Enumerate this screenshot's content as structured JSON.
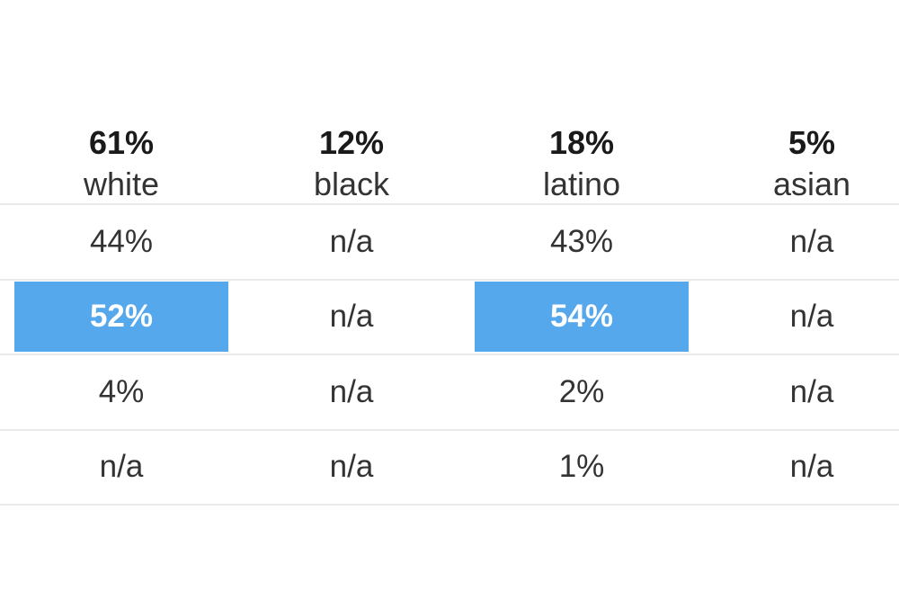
{
  "colors": {
    "background": "#ffffff",
    "highlight": "#55a8ec",
    "highlight_text": "#ffffff",
    "separator": "#eaeaea",
    "header_percent_text": "#1a1a1a",
    "body_text": "#333333"
  },
  "chart_data": {
    "type": "table",
    "grid": "horizontal separators only",
    "columns": [
      {
        "percent": "61%",
        "label": "white"
      },
      {
        "percent": "12%",
        "label": "black"
      },
      {
        "percent": "18%",
        "label": "latino"
      },
      {
        "percent": "5%",
        "label": "asian"
      }
    ],
    "rows": [
      {
        "cells": [
          {
            "value": "44%"
          },
          {
            "value": "n/a"
          },
          {
            "value": "43%"
          },
          {
            "value": "n/a"
          }
        ]
      },
      {
        "cells": [
          {
            "value": "52%",
            "highlight": true
          },
          {
            "value": "n/a"
          },
          {
            "value": "54%",
            "highlight": true
          },
          {
            "value": "n/a"
          }
        ]
      },
      {
        "cells": [
          {
            "value": "4%"
          },
          {
            "value": "n/a"
          },
          {
            "value": "2%"
          },
          {
            "value": "n/a"
          }
        ]
      },
      {
        "cells": [
          {
            "value": "n/a"
          },
          {
            "value": "n/a"
          },
          {
            "value": "1%"
          },
          {
            "value": "n/a"
          }
        ]
      }
    ]
  }
}
